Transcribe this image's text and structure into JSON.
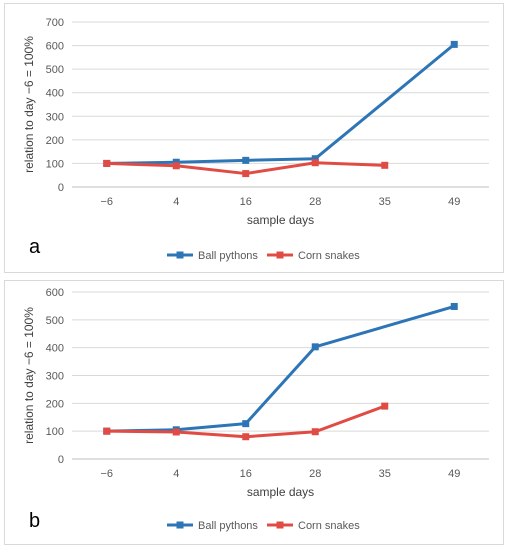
{
  "colors": {
    "ball": "#2E75B6",
    "corn": "#E04C44",
    "grid": "#D9D9D9",
    "axis": "#BFBFBF"
  },
  "chart_data": [
    {
      "panel_label": "a",
      "type": "line",
      "categories": [
        "−6",
        "4",
        "16",
        "28",
        "35",
        "49"
      ],
      "ylim": [
        0,
        700
      ],
      "yticks": [
        0,
        100,
        200,
        300,
        400,
        500,
        600,
        700
      ],
      "xlabel": "sample days",
      "ylabel": "relation to day −6 = 100%",
      "grid": true,
      "legend": "bottom",
      "series": [
        {
          "name": "Ball pythons",
          "color": "#2E75B6",
          "points": [
            [
              0,
              100
            ],
            [
              1,
              105
            ],
            [
              2,
              113
            ],
            [
              3,
              120
            ],
            [
              5,
              605
            ]
          ]
        },
        {
          "name": "Corn snakes",
          "color": "#E04C44",
          "points": [
            [
              0,
              100
            ],
            [
              1,
              90
            ],
            [
              2,
              57
            ],
            [
              3,
              103
            ],
            [
              4,
              92
            ]
          ]
        }
      ]
    },
    {
      "panel_label": "b",
      "type": "line",
      "categories": [
        "−6",
        "4",
        "16",
        "28",
        "35",
        "49"
      ],
      "ylim": [
        0,
        600
      ],
      "yticks": [
        0,
        100,
        200,
        300,
        400,
        500,
        600
      ],
      "xlabel": "sample days",
      "ylabel": "relation to day −6 = 100%",
      "grid": true,
      "legend": "bottom",
      "series": [
        {
          "name": "Ball pythons",
          "color": "#2E75B6",
          "points": [
            [
              0,
              100
            ],
            [
              1,
              105
            ],
            [
              2,
              127
            ],
            [
              3,
              403
            ],
            [
              5,
              548
            ]
          ]
        },
        {
          "name": "Corn snakes",
          "color": "#E04C44",
          "points": [
            [
              0,
              100
            ],
            [
              1,
              97
            ],
            [
              2,
              80
            ],
            [
              3,
              98
            ],
            [
              4,
              190
            ]
          ]
        }
      ]
    }
  ]
}
